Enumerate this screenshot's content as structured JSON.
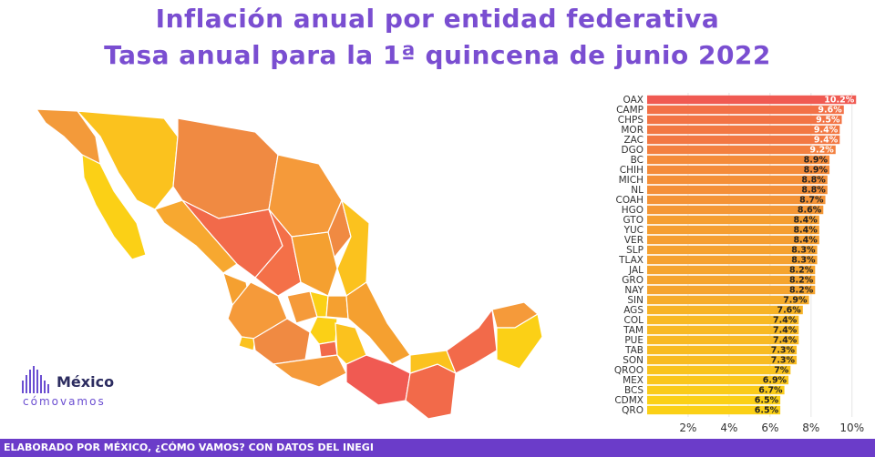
{
  "title": "Inflación anual por entidad federativa",
  "subtitle": "Tasa anual para la 1ª quincena de junio 2022",
  "footer": "ELABORADO POR MÉXICO, ¿CÓMO VAMOS? CON DATOS DEL INEGI",
  "logo": {
    "line1": "México",
    "line2": "cómovamos"
  },
  "colors": {
    "title": "#7a4ed1",
    "footer": "#6b3cc9",
    "high": "#f05a52",
    "mid": "#f5a623",
    "low": "#fbd016"
  },
  "chart_data": {
    "type": "bar",
    "orientation": "horizontal",
    "categories": [
      "OAX",
      "CAMP",
      "CHPS",
      "MOR",
      "ZAC",
      "DGO",
      "BC",
      "CHIH",
      "MICH",
      "NL",
      "COAH",
      "HGO",
      "GTO",
      "YUC",
      "VER",
      "SLP",
      "TLAX",
      "JAL",
      "GRO",
      "NAY",
      "SIN",
      "AGS",
      "COL",
      "TAM",
      "PUE",
      "TAB",
      "SON",
      "QROO",
      "MEX",
      "BCS",
      "CDMX",
      "QRO"
    ],
    "values": [
      10.2,
      9.6,
      9.5,
      9.4,
      9.4,
      9.2,
      8.9,
      8.9,
      8.8,
      8.8,
      8.7,
      8.6,
      8.4,
      8.4,
      8.4,
      8.3,
      8.3,
      8.2,
      8.2,
      8.2,
      7.9,
      7.6,
      7.4,
      7.4,
      7.4,
      7.3,
      7.3,
      7,
      6.9,
      6.7,
      6.5,
      6.5
    ],
    "data_labels": [
      "10.2%",
      "9.6%",
      "9.5%",
      "9.4%",
      "9.4%",
      "9.2%",
      "8.9%",
      "8.9%",
      "8.8%",
      "8.8%",
      "8.7%",
      "8.6%",
      "8.4%",
      "8.4%",
      "8.4%",
      "8.3%",
      "8.3%",
      "8.2%",
      "8.2%",
      "8.2%",
      "7.9%",
      "7.6%",
      "7.4%",
      "7.4%",
      "7.4%",
      "7.3%",
      "7.3%",
      "7%",
      "6.9%",
      "6.7%",
      "6.5%",
      "6.5%"
    ],
    "x_ticks": [
      "2%",
      "4%",
      "6%",
      "8%",
      "10%"
    ],
    "xlim": [
      0,
      10.5
    ],
    "grid": true
  }
}
